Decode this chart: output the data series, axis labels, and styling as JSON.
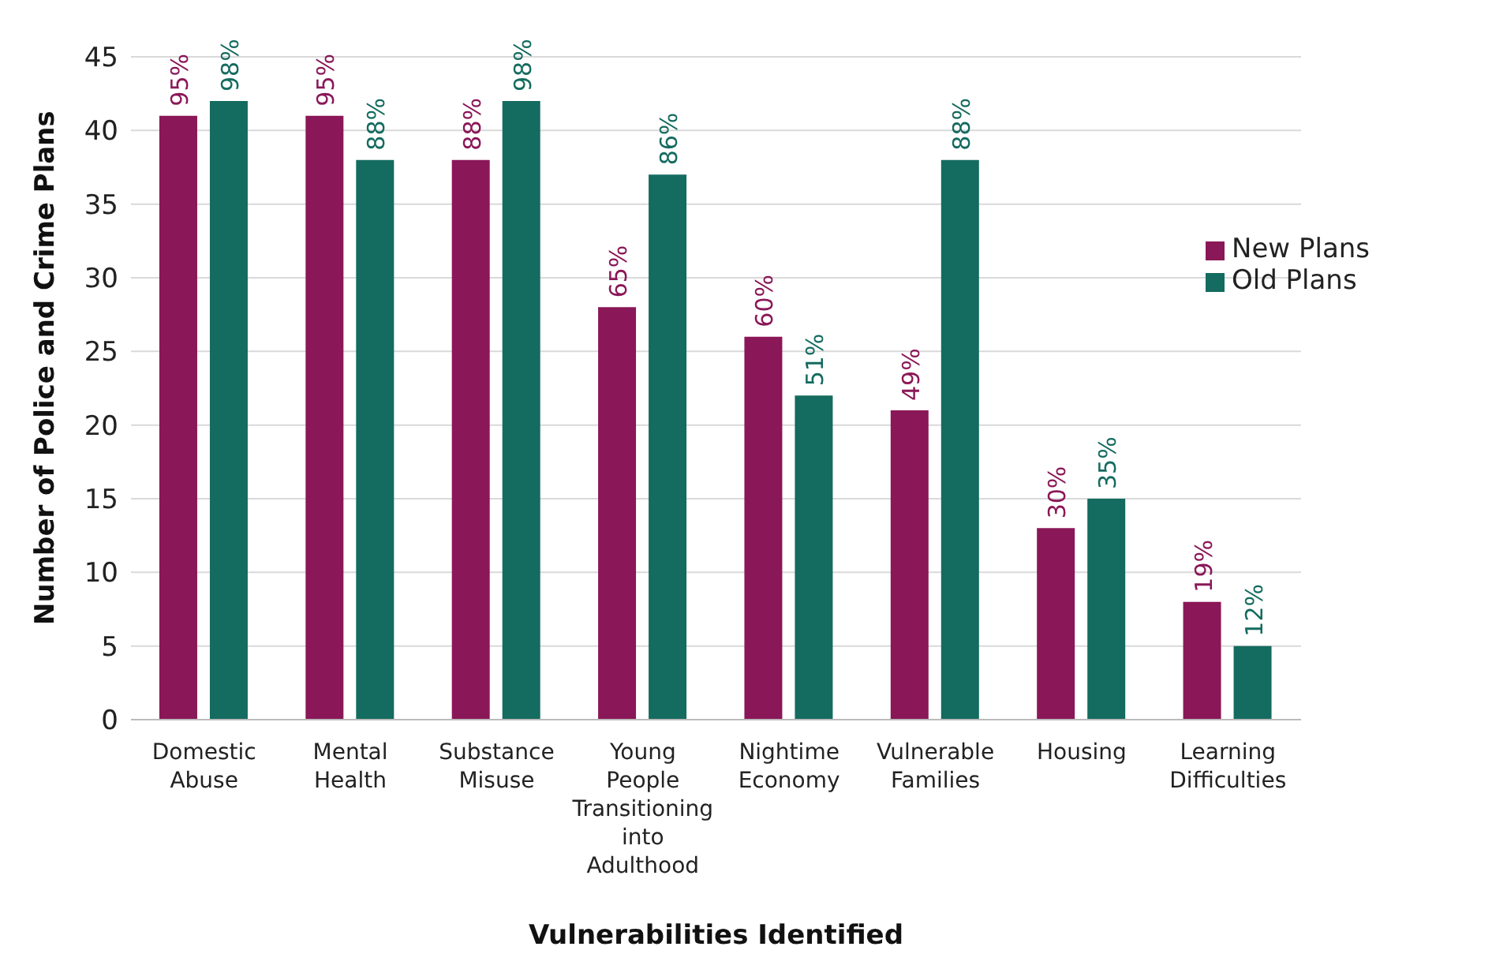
{
  "chart_data": {
    "type": "bar",
    "xlabel": "Vulnerabilities Identified",
    "ylabel": "Number of Police and Crime Plans",
    "categories": [
      "Domestic Abuse",
      "Mental Health",
      "Substance Misuse",
      "Young People Transitioning into Adulthood",
      "Nightime Economy",
      "Vulnerable Families",
      "Housing",
      "Learning Difficulties"
    ],
    "series": [
      {
        "name": "New Plans",
        "color": "#8a1757",
        "values": [
          41,
          41,
          38,
          28,
          26,
          21,
          13,
          8
        ]
      },
      {
        "name": "Old Plans",
        "color": "#146b5f",
        "values": [
          42,
          38,
          42,
          37,
          22,
          38,
          15,
          5
        ]
      }
    ],
    "annotations": [
      {
        "text": "95%",
        "x": "Domestic Abuse",
        "y": 41
      },
      {
        "text": "98%",
        "x": "Domestic Abuse",
        "y": 42
      },
      {
        "text": "95%",
        "x": "Mental Health",
        "y": 41
      },
      {
        "text": "88%",
        "x": "Mental Health",
        "y": 38
      },
      {
        "text": "88%",
        "x": "Substance Misuse",
        "y": 38
      },
      {
        "text": "98%",
        "x": "Substance Misuse",
        "y": 42
      },
      {
        "text": "65%",
        "x": "Young People Transitioning into Adulthood",
        "y": 28
      },
      {
        "text": "86%",
        "x": "Young People Transitioning into Adulthood",
        "y": 37
      },
      {
        "text": "60%",
        "x": "Nightime Economy",
        "y": 26
      },
      {
        "text": "51%",
        "x": "Nightime Economy",
        "y": 22
      },
      {
        "text": "49%",
        "x": "Vulnerable Families",
        "y": 21
      },
      {
        "text": "88%",
        "x": "Vulnerable Families",
        "y": 38
      },
      {
        "text": "30%",
        "x": "Housing",
        "y": 13
      },
      {
        "text": "35%",
        "x": "Housing",
        "y": 15
      },
      {
        "text": "19%",
        "x": "Learning Difficulties",
        "y": 8
      },
      {
        "text": "12%",
        "x": "Learning Difficulties",
        "y": 5
      }
    ],
    "ylim": [
      0,
      45
    ],
    "yticks": [
      0,
      5,
      10,
      15,
      20,
      25,
      30,
      35,
      40,
      45
    ],
    "grid": "y",
    "legend": "right"
  }
}
